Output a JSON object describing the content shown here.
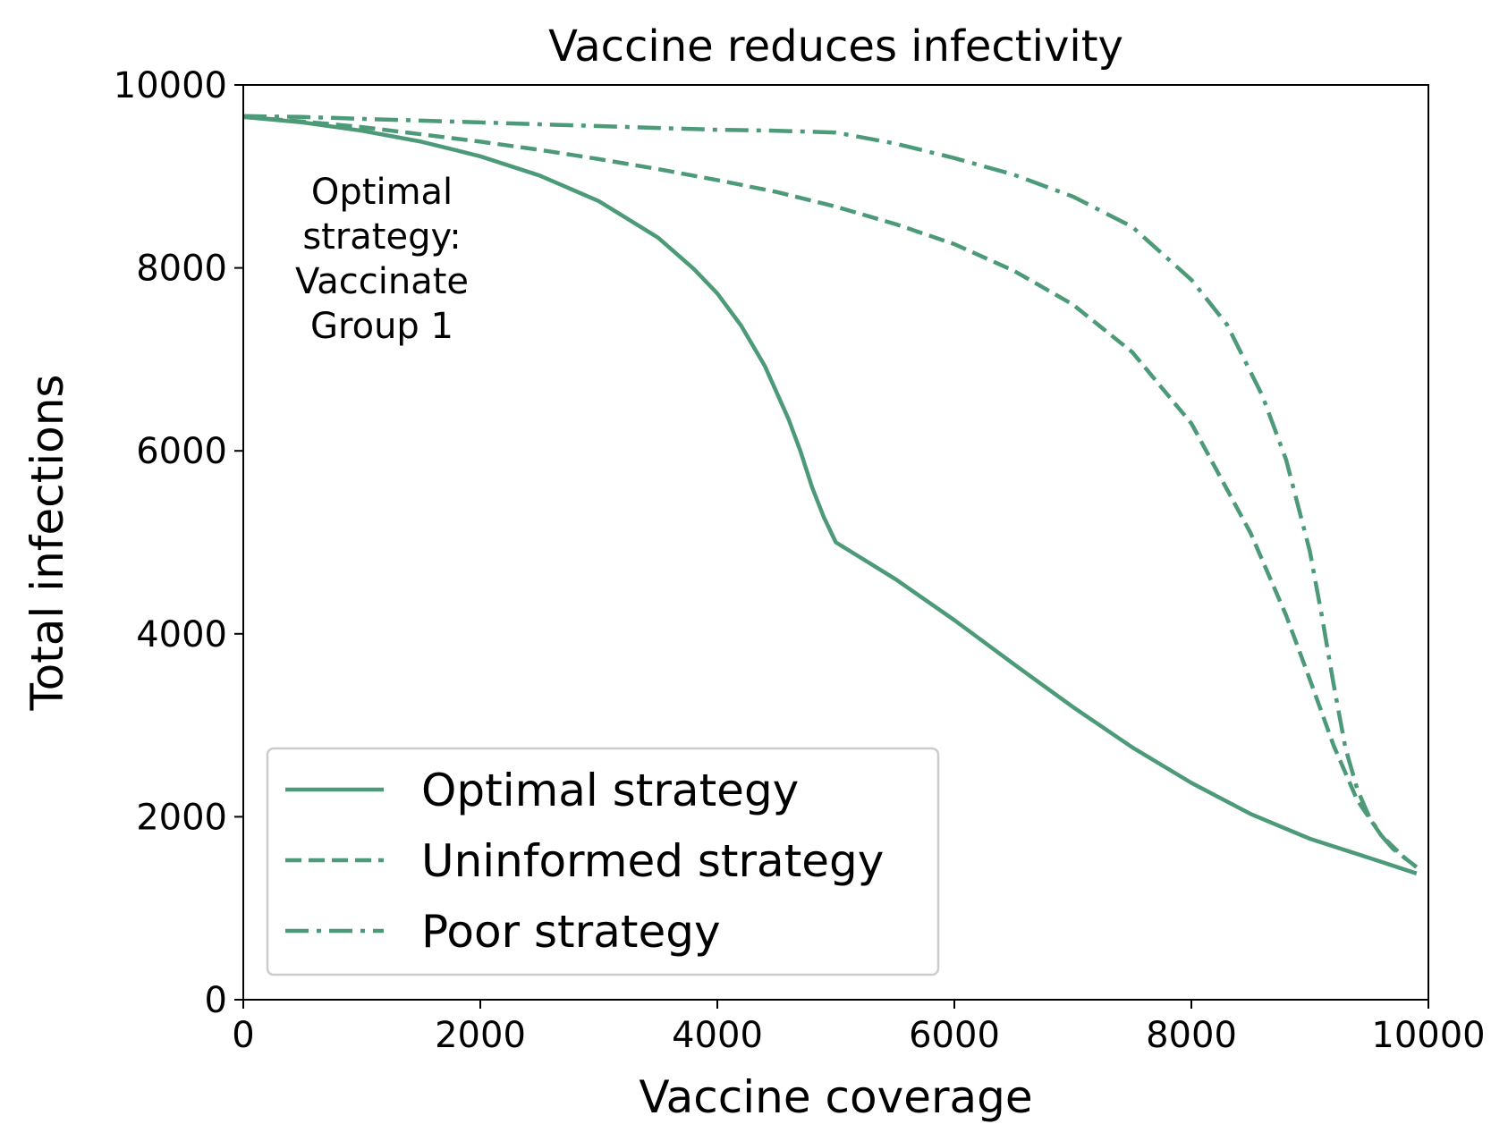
{
  "chart_data": {
    "type": "line",
    "title": "Vaccine reduces infectivity",
    "xlabel": "Vaccine coverage",
    "ylabel": "Total infections",
    "xlim": [
      0,
      10000
    ],
    "ylim": [
      0,
      10000
    ],
    "xticks": [
      0,
      2000,
      4000,
      6000,
      8000,
      10000
    ],
    "yticks": [
      0,
      2000,
      4000,
      6000,
      8000,
      10000
    ],
    "grid": false,
    "legend_position": "lower-left",
    "annotation": {
      "lines": [
        "Optimal",
        "strategy:",
        "Vaccinate",
        "Group 1"
      ],
      "x": 1170,
      "y": 8700
    },
    "color": "#4c9a78",
    "series": [
      {
        "name": "Optimal strategy",
        "style": "solid",
        "x": [
          0,
          500,
          1000,
          1500,
          2000,
          2500,
          3000,
          3500,
          3800,
          4000,
          4200,
          4400,
          4600,
          4700,
          4800,
          4900,
          5000,
          5500,
          6000,
          6500,
          7000,
          7500,
          8000,
          8500,
          9000,
          9500,
          9900
        ],
        "y": [
          9650,
          9590,
          9500,
          9380,
          9220,
          9010,
          8730,
          8330,
          7990,
          7720,
          7370,
          6930,
          6350,
          6000,
          5600,
          5270,
          5000,
          4600,
          4150,
          3670,
          3200,
          2760,
          2370,
          2030,
          1760,
          1550,
          1380
        ]
      },
      {
        "name": "Uninformed strategy",
        "style": "dashed",
        "x": [
          0,
          500,
          1000,
          1500,
          2000,
          2500,
          3000,
          3500,
          4000,
          4500,
          5000,
          5500,
          6000,
          6500,
          7000,
          7500,
          8000,
          8500,
          8800,
          9000,
          9200,
          9400,
          9600,
          9800,
          9900
        ],
        "y": [
          9650,
          9600,
          9540,
          9460,
          9380,
          9290,
          9190,
          9080,
          8960,
          8830,
          8670,
          8480,
          8260,
          7970,
          7600,
          7080,
          6300,
          5100,
          4200,
          3500,
          2780,
          2180,
          1800,
          1550,
          1450
        ]
      },
      {
        "name": "Poor strategy",
        "style": "dashdot",
        "x": [
          0,
          500,
          1000,
          1500,
          2000,
          2500,
          3000,
          3500,
          4000,
          4500,
          5000,
          5500,
          6000,
          6500,
          7000,
          7500,
          8000,
          8300,
          8600,
          8800,
          9000,
          9100,
          9200,
          9300,
          9400,
          9500,
          9600,
          9700,
          9800,
          9900
        ],
        "y": [
          9660,
          9650,
          9630,
          9610,
          9590,
          9570,
          9550,
          9530,
          9510,
          9500,
          9480,
          9360,
          9200,
          9020,
          8780,
          8450,
          7870,
          7380,
          6600,
          5900,
          4900,
          4200,
          3450,
          2750,
          2300,
          2000,
          1800,
          1650,
          1550,
          1450
        ]
      }
    ]
  }
}
